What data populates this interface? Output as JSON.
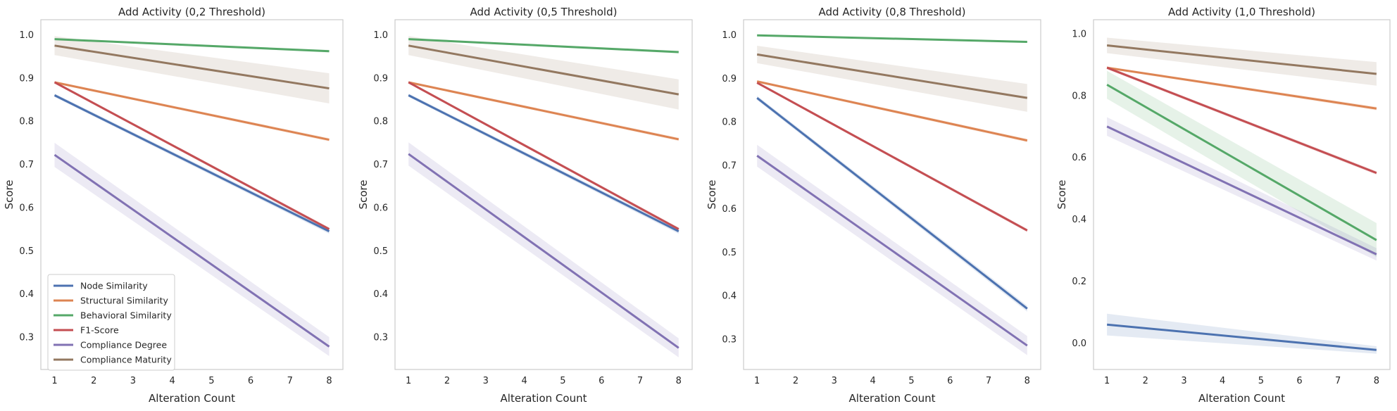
{
  "chart_data": [
    {
      "type": "line",
      "title": "Add Activity (0,2 Threshold)",
      "xlabel": "Alteration Count",
      "ylabel": "Score",
      "xlim": [
        0.65,
        8.35
      ],
      "ylim": [
        0.225,
        1.035
      ],
      "xticks": [
        1,
        2,
        3,
        4,
        5,
        6,
        7,
        8
      ],
      "yticks": [
        0.3,
        0.4,
        0.5,
        0.6,
        0.7,
        0.8,
        0.9,
        1.0
      ],
      "grid": false,
      "legend": "lower-left",
      "series": [
        {
          "name": "Node Similarity",
          "color": "#4c72b0",
          "x": [
            1,
            8
          ],
          "y": [
            0.86,
            0.545
          ],
          "ci": [
            0.004,
            0.006
          ]
        },
        {
          "name": "Structural Similarity",
          "color": "#dd8452",
          "x": [
            1,
            8
          ],
          "y": [
            0.89,
            0.757
          ],
          "ci": [
            0.003,
            0.004
          ]
        },
        {
          "name": "Behavioral Similarity",
          "color": "#55a868",
          "x": [
            1,
            8
          ],
          "y": [
            0.99,
            0.962
          ],
          "ci": [
            0.002,
            0.003
          ]
        },
        {
          "name": "F1-Score",
          "color": "#c44e52",
          "x": [
            1,
            8
          ],
          "y": [
            0.89,
            0.55
          ],
          "ci": [
            0.003,
            0.004
          ]
        },
        {
          "name": "Compliance Degree",
          "color": "#8172b3",
          "x": [
            1,
            8
          ],
          "y": [
            0.722,
            0.278
          ],
          "ci": [
            0.028,
            0.022
          ]
        },
        {
          "name": "Compliance Maturity",
          "color": "#937860",
          "x": [
            1,
            8
          ],
          "y": [
            0.975,
            0.876
          ],
          "ci": [
            0.022,
            0.035
          ]
        }
      ]
    },
    {
      "type": "line",
      "title": "Add Activity (0,5 Threshold)",
      "xlabel": "Alteration Count",
      "ylabel": "Score",
      "xlim": [
        0.65,
        8.35
      ],
      "ylim": [
        0.225,
        1.035
      ],
      "xticks": [
        1,
        2,
        3,
        4,
        5,
        6,
        7,
        8
      ],
      "yticks": [
        0.3,
        0.4,
        0.5,
        0.6,
        0.7,
        0.8,
        0.9,
        1.0
      ],
      "grid": false,
      "series": [
        {
          "name": "Node Similarity",
          "color": "#4c72b0",
          "x": [
            1,
            8
          ],
          "y": [
            0.86,
            0.545
          ],
          "ci": [
            0.004,
            0.006
          ]
        },
        {
          "name": "Structural Similarity",
          "color": "#dd8452",
          "x": [
            1,
            8
          ],
          "y": [
            0.89,
            0.758
          ],
          "ci": [
            0.003,
            0.004
          ]
        },
        {
          "name": "Behavioral Similarity",
          "color": "#55a868",
          "x": [
            1,
            8
          ],
          "y": [
            0.99,
            0.96
          ],
          "ci": [
            0.002,
            0.003
          ]
        },
        {
          "name": "F1-Score",
          "color": "#c44e52",
          "x": [
            1,
            8
          ],
          "y": [
            0.89,
            0.55
          ],
          "ci": [
            0.003,
            0.004
          ]
        },
        {
          "name": "Compliance Degree",
          "color": "#8172b3",
          "x": [
            1,
            8
          ],
          "y": [
            0.724,
            0.275
          ],
          "ci": [
            0.027,
            0.022
          ]
        },
        {
          "name": "Compliance Maturity",
          "color": "#937860",
          "x": [
            1,
            8
          ],
          "y": [
            0.975,
            0.862
          ],
          "ci": [
            0.022,
            0.035
          ]
        }
      ]
    },
    {
      "type": "line",
      "title": "Add Activity (0,8 Threshold)",
      "xlabel": "Alteration Count",
      "ylabel": "Score",
      "xlim": [
        0.65,
        8.35
      ],
      "ylim": [
        0.23,
        1.035
      ],
      "xticks": [
        1,
        2,
        3,
        4,
        5,
        6,
        7,
        8
      ],
      "yticks": [
        0.3,
        0.4,
        0.5,
        0.6,
        0.7,
        0.8,
        0.9,
        1.0
      ],
      "grid": false,
      "series": [
        {
          "name": "Node Similarity",
          "color": "#4c72b0",
          "x": [
            1,
            8
          ],
          "y": [
            0.855,
            0.37
          ],
          "ci": [
            0.005,
            0.007
          ]
        },
        {
          "name": "Structural Similarity",
          "color": "#dd8452",
          "x": [
            1,
            8
          ],
          "y": [
            0.893,
            0.757
          ],
          "ci": [
            0.003,
            0.004
          ]
        },
        {
          "name": "Behavioral Similarity",
          "color": "#55a868",
          "x": [
            1,
            8
          ],
          "y": [
            0.999,
            0.984
          ],
          "ci": [
            0.001,
            0.002
          ]
        },
        {
          "name": "F1-Score",
          "color": "#c44e52",
          "x": [
            1,
            8
          ],
          "y": [
            0.89,
            0.55
          ],
          "ci": [
            0.003,
            0.004
          ]
        },
        {
          "name": "Compliance Degree",
          "color": "#8172b3",
          "x": [
            1,
            8
          ],
          "y": [
            0.722,
            0.285
          ],
          "ci": [
            0.025,
            0.022
          ]
        },
        {
          "name": "Compliance Maturity",
          "color": "#937860",
          "x": [
            1,
            8
          ],
          "y": [
            0.955,
            0.855
          ],
          "ci": [
            0.02,
            0.032
          ]
        }
      ]
    },
    {
      "type": "line",
      "title": "Add Activity (1,0 Threshold)",
      "xlabel": "Alteration Count",
      "ylabel": "Score",
      "xlim": [
        0.65,
        8.35
      ],
      "ylim": [
        -0.085,
        1.045
      ],
      "xticks": [
        1,
        2,
        3,
        4,
        5,
        6,
        7,
        8
      ],
      "yticks": [
        0.0,
        0.2,
        0.4,
        0.6,
        0.8,
        1.0
      ],
      "grid": false,
      "series": [
        {
          "name": "Node Similarity",
          "color": "#4c72b0",
          "x": [
            1,
            8
          ],
          "y": [
            0.06,
            -0.022
          ],
          "ci": [
            0.035,
            0.012
          ]
        },
        {
          "name": "Structural Similarity",
          "color": "#dd8452",
          "x": [
            1,
            8
          ],
          "y": [
            0.89,
            0.758
          ],
          "ci": [
            0.004,
            0.006
          ]
        },
        {
          "name": "Behavioral Similarity",
          "color": "#55a868",
          "x": [
            1,
            8
          ],
          "y": [
            0.835,
            0.333
          ],
          "ci": [
            0.045,
            0.055
          ]
        },
        {
          "name": "F1-Score",
          "color": "#c44e52",
          "x": [
            1,
            8
          ],
          "y": [
            0.89,
            0.55
          ],
          "ci": [
            0.005,
            0.006
          ]
        },
        {
          "name": "Compliance Degree",
          "color": "#8172b3",
          "x": [
            1,
            8
          ],
          "y": [
            0.7,
            0.287
          ],
          "ci": [
            0.03,
            0.02
          ]
        },
        {
          "name": "Compliance Maturity",
          "color": "#937860",
          "x": [
            1,
            8
          ],
          "y": [
            0.962,
            0.87
          ],
          "ci": [
            0.025,
            0.038
          ]
        }
      ]
    }
  ]
}
